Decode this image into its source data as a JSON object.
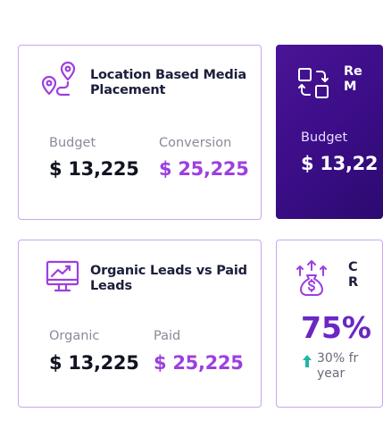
{
  "cards": [
    {
      "title": "Location Based Media Placement",
      "icon": "route-icon",
      "left_label": "Budget",
      "left_value": "$ 13,225",
      "right_label": "Conversion",
      "right_value": "$ 25,225"
    },
    {
      "title_line1": "Re",
      "title_line2": "M",
      "icon": "swap-icon",
      "left_label": "Budget",
      "left_value": "$ 13,22"
    },
    {
      "title": "Organic Leads vs Paid Leads",
      "icon": "computer-chart-icon",
      "left_label": "Organic",
      "left_value": "$ 13,225",
      "right_label": "Paid",
      "right_value": "$ 25,225"
    },
    {
      "title_line1": "C",
      "title_line2": "R",
      "icon": "money-bag-arrows-icon",
      "percent": "75%",
      "note_line1": "30% fr",
      "note_line2": "year",
      "trend_color": "#1fb6a6"
    }
  ],
  "colors": {
    "accent_purple": "#9c3fe0",
    "card_border": "#c9a6ef",
    "dark_card": "#3a0d86"
  }
}
